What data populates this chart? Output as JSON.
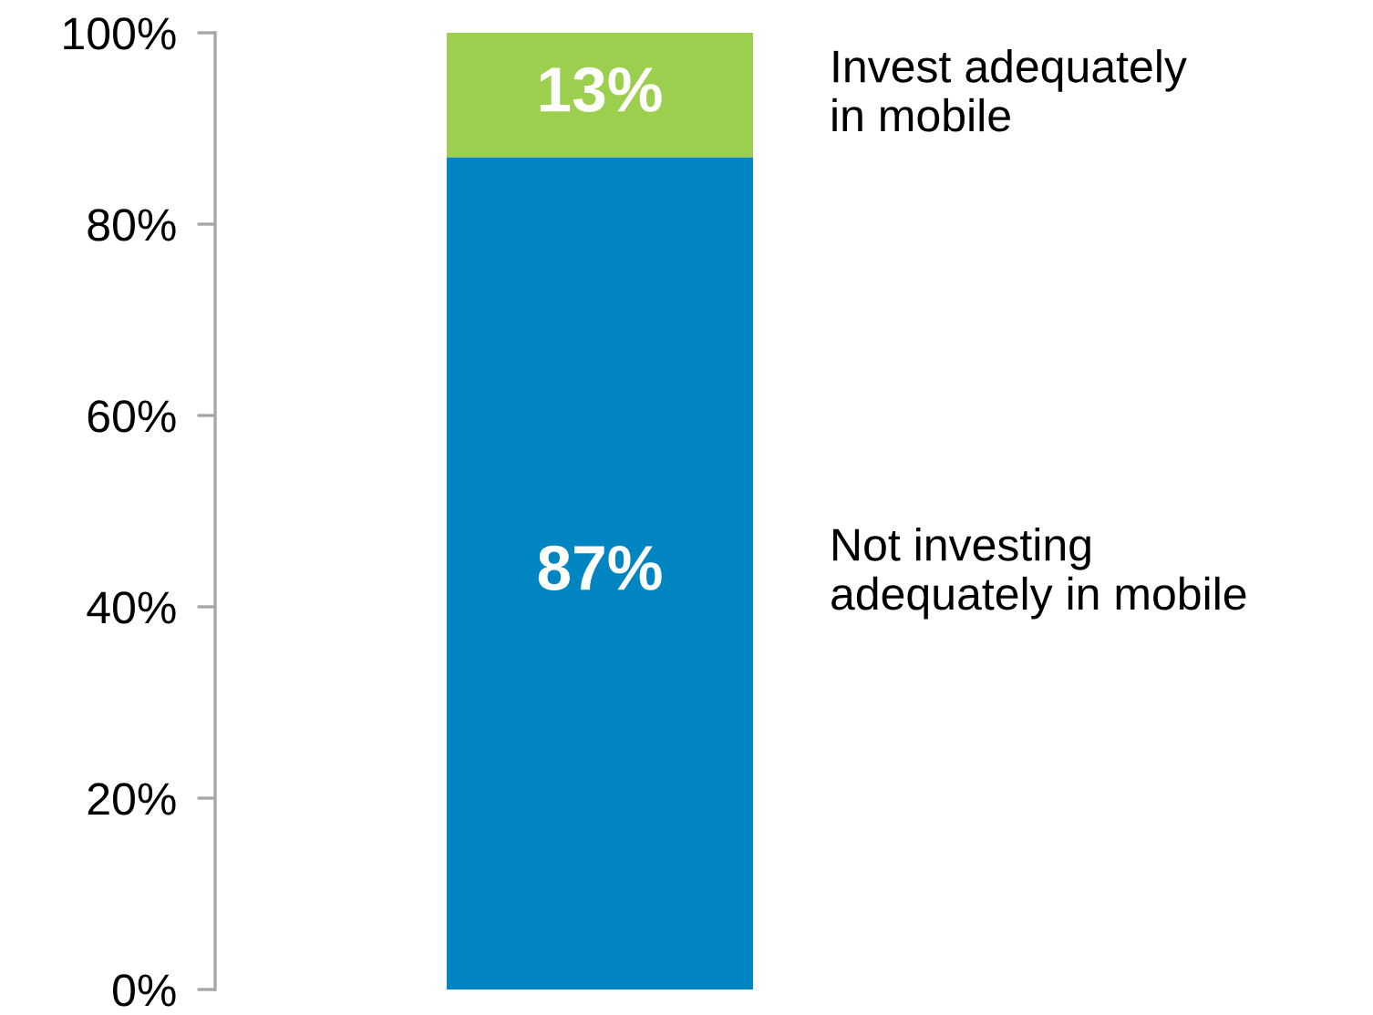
{
  "chart_data": {
    "type": "bar",
    "stacked": true,
    "categories": [
      null
    ],
    "series": [
      {
        "name": "Not investing\nadequately in mobile",
        "color": "#0085c3",
        "values": [
          87
        ],
        "value_labels": [
          "87%"
        ]
      },
      {
        "name": "Invest adequately\nin mobile",
        "color": "#9ccf4e",
        "values": [
          13
        ],
        "value_labels": [
          "13%"
        ]
      }
    ],
    "ylim": [
      0,
      100
    ],
    "yticks": [
      {
        "value": 0,
        "label": "0%"
      },
      {
        "value": 20,
        "label": "20%"
      },
      {
        "value": 40,
        "label": "40%"
      },
      {
        "value": 60,
        "label": "60%"
      },
      {
        "value": 80,
        "label": "80%"
      },
      {
        "value": 100,
        "label": "100%"
      }
    ],
    "tick_labels": "y",
    "grid": false,
    "legend": false
  }
}
